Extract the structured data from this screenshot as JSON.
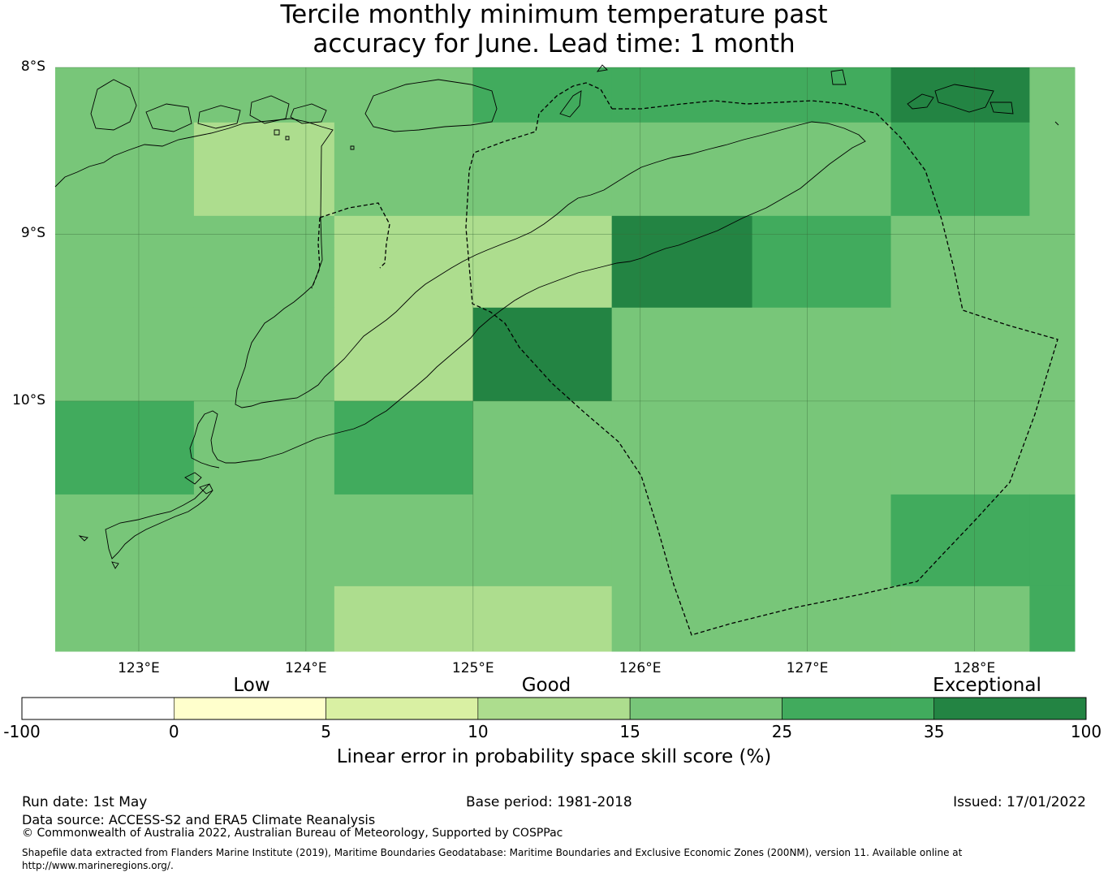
{
  "title": {
    "line1": "Tercile monthly minimum temperature past",
    "line2": "accuracy for June. Lead time: 1 month"
  },
  "map": {
    "lon_range": [
      122.5,
      128.6
    ],
    "lat_range": [
      -11.5,
      -8.0
    ],
    "lat_ticks": [
      {
        "value": -8,
        "label": "8°S"
      },
      {
        "value": -9,
        "label": "9°S"
      },
      {
        "value": -10,
        "label": "10°S"
      }
    ],
    "lon_ticks": [
      {
        "value": 123,
        "label": "123°E"
      },
      {
        "value": 124,
        "label": "124°E"
      },
      {
        "value": 125,
        "label": "125°E"
      },
      {
        "value": 126,
        "label": "126°E"
      },
      {
        "value": 127,
        "label": "127°E"
      },
      {
        "value": 128,
        "label": "128°E"
      }
    ],
    "grid_lon_edges": [
      122.5,
      123.33,
      124.17,
      125.0,
      125.83,
      126.67,
      127.5,
      128.33,
      128.6
    ],
    "grid_lat_edges": [
      -8.0,
      -8.33,
      -8.89,
      -9.44,
      -10.0,
      -10.56,
      -11.11,
      -11.5
    ],
    "cells": [
      [
        2,
        2,
        2,
        3,
        3,
        3,
        4,
        2
      ],
      [
        2,
        1,
        2,
        2,
        2,
        2,
        3,
        2
      ],
      [
        2,
        2,
        1,
        1,
        4,
        3,
        2,
        2
      ],
      [
        2,
        2,
        1,
        4,
        2,
        2,
        2,
        2
      ],
      [
        3,
        2,
        3,
        2,
        2,
        2,
        2,
        2
      ],
      [
        2,
        2,
        2,
        2,
        2,
        2,
        3,
        3
      ],
      [
        2,
        2,
        1,
        1,
        2,
        2,
        2,
        3
      ]
    ],
    "colors": [
      "#ffffcc",
      "#addd8e",
      "#78c679",
      "#41ab5d",
      "#238443"
    ]
  },
  "colorbar": {
    "categories": [
      "Low",
      "Good",
      "Exceptional"
    ],
    "ticks": [
      "-100",
      "0",
      "5",
      "10",
      "15",
      "25",
      "35",
      "100"
    ],
    "colors": [
      "#ffffff",
      "#ffffcc",
      "#d9f0a3",
      "#addd8e",
      "#78c679",
      "#41ab5d",
      "#238443"
    ],
    "title": "Linear error in probability space skill score (%)"
  },
  "footer": {
    "run_date": "Run date: 1st May",
    "base_period": "Base period: 1981-2018",
    "issued": "Issued: 17/01/2022",
    "data_source": "Data source: ACCESS-S2 and ERA5 Climate Reanalysis",
    "copyright": "© Commonwealth of Australia 2022, Australian Bureau of Meteorology, Supported by COSPPac",
    "shapefile_line1": "Shapefile data extracted from Flanders Marine Institute (2019), Maritime Boundaries Geodatabase: Maritime Boundaries and Exclusive Economic Zones (200NM), version 11. Available online at",
    "shapefile_line2": "http://www.marineregions.org/."
  }
}
